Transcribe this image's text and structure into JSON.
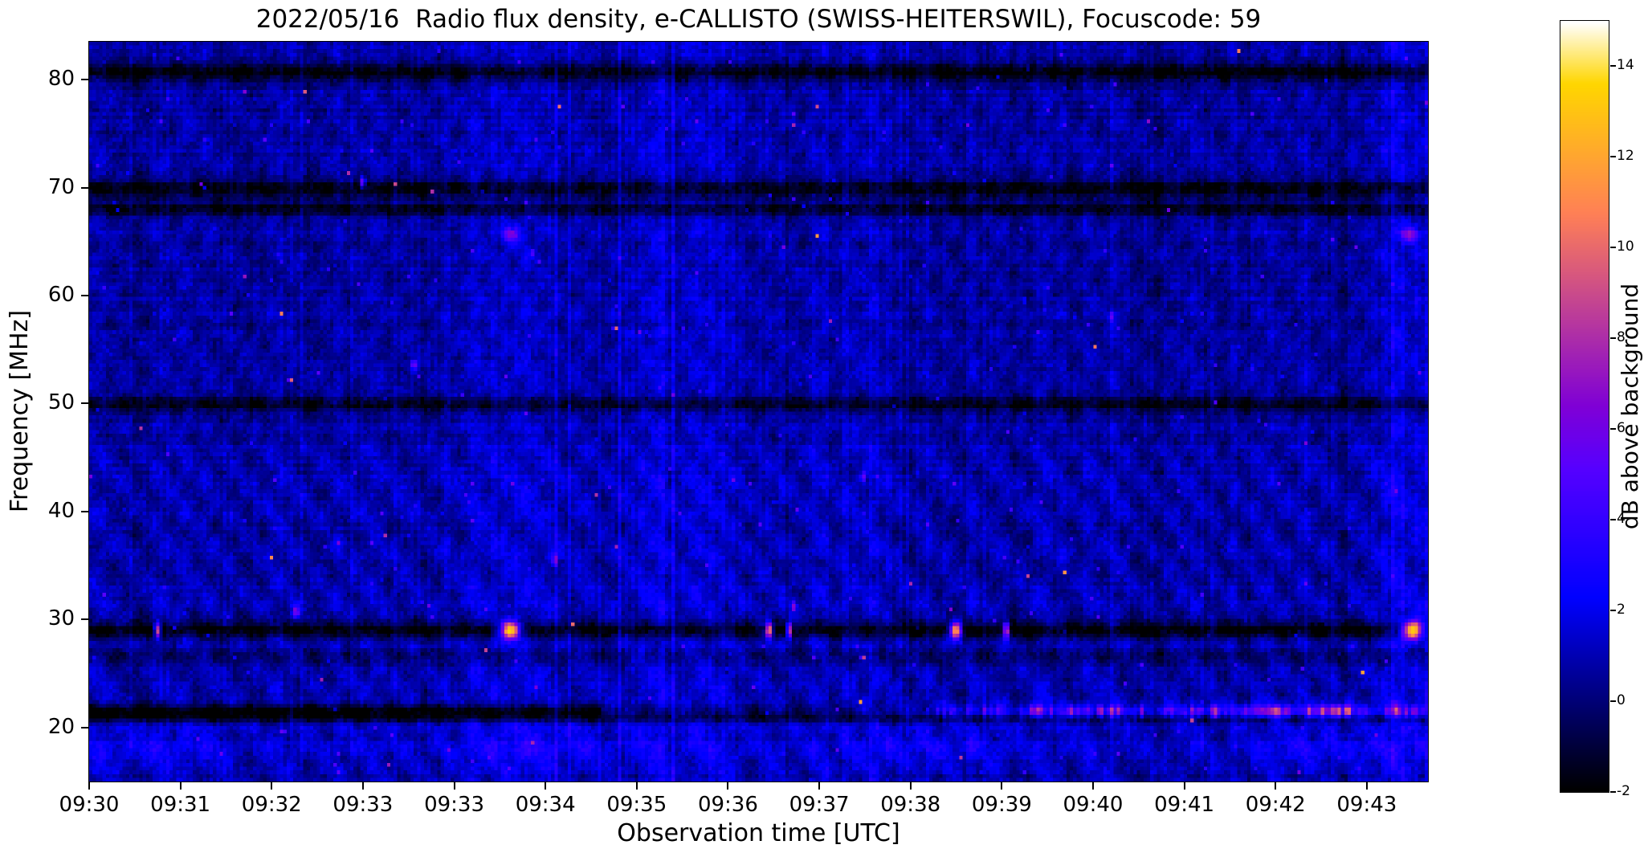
{
  "figure": {
    "background": "#ffffff",
    "text_color": "#000000"
  },
  "chart_data": {
    "type": "heatmap",
    "title": "2022/05/16  Radio flux density, e-CALLISTO (SWISS-HEITERSWIL), Focuscode: 59",
    "xlabel": "Observation time [UTC]",
    "ylabel": "Frequency [MHz]",
    "x_tick_labels": [
      "09:30",
      "09:31",
      "09:32",
      "09:33",
      "09:33",
      "09:34",
      "09:35",
      "09:36",
      "09:37",
      "09:38",
      "09:39",
      "09:40",
      "09:41",
      "09:42",
      "09:43"
    ],
    "x_range_units": [
      0,
      14.67
    ],
    "y_tick_values": [
      20,
      30,
      40,
      50,
      60,
      70,
      80
    ],
    "y_range_mhz": [
      15.0,
      83.5
    ],
    "grid": false,
    "colormap": "gnuplot2",
    "colorbar": {
      "label": "dB above background",
      "tick_values": [
        -2,
        0,
        2,
        4,
        6,
        8,
        10,
        12,
        14
      ],
      "vmin": -2,
      "vmax": 15
    },
    "noise_model": {
      "seed": 1337,
      "base_db": 0.85,
      "cell_noise_db": 1.1,
      "column_noise_db": 0.75,
      "row_noise_db": 0.3,
      "ripple_amp_low_db": 0.55,
      "ripple_amp_high_db": 0.33,
      "ripple_split_mhz": 46
    },
    "dark_bands": [
      {
        "center_mhz": 80.6,
        "width_mhz": 0.55,
        "depth_db": 2.6
      },
      {
        "center_mhz": 69.9,
        "width_mhz": 0.6,
        "depth_db": 2.6
      },
      {
        "center_mhz": 68.0,
        "width_mhz": 0.45,
        "depth_db": 2.3
      },
      {
        "center_mhz": 49.9,
        "width_mhz": 0.5,
        "depth_db": 2.3
      },
      {
        "center_mhz": 29.0,
        "width_mhz": 0.55,
        "depth_db": 2.7
      },
      {
        "center_mhz": 26.6,
        "width_mhz": 0.4,
        "depth_db": 1.1
      },
      {
        "center_mhz": 20.85,
        "width_mhz": 0.28,
        "depth_db": 1.6
      }
    ],
    "low_band_21mhz": {
      "center_mhz": 21.5,
      "width_mhz": 0.42,
      "black_until_unit": 5.6,
      "black_depth_db": 3.4,
      "mid_depth_db": 1.2,
      "streak_start_unit": 8.2,
      "streak_ramp_units": 2.2,
      "streak_base_db": 3.4,
      "streak_var_db": 3.2,
      "streak_hotspots": [
        {
          "t_unit": 12.9,
          "extra_db": 4.0
        },
        {
          "t_unit": 13.6,
          "extra_db": 3.5
        }
      ]
    },
    "bright_events": [
      {
        "t_unit": 0.75,
        "f_mhz": 29.0,
        "peak_db": 12.0,
        "sigma_t": 0.022,
        "sigma_f": 0.5,
        "glow": false
      },
      {
        "t_unit": 4.62,
        "f_mhz": 29.0,
        "peak_db": 15.5,
        "sigma_t": 0.07,
        "sigma_f": 0.55,
        "glow": true
      },
      {
        "t_unit": 4.62,
        "f_mhz": 65.6,
        "peak_db": 5.0,
        "sigma_t": 0.06,
        "sigma_f": 0.55,
        "glow": false
      },
      {
        "t_unit": 7.45,
        "f_mhz": 29.0,
        "peak_db": 13.5,
        "sigma_t": 0.026,
        "sigma_f": 0.5,
        "glow": false
      },
      {
        "t_unit": 7.67,
        "f_mhz": 29.0,
        "peak_db": 12.5,
        "sigma_t": 0.02,
        "sigma_f": 0.5,
        "glow": false
      },
      {
        "t_unit": 9.5,
        "f_mhz": 29.0,
        "peak_db": 14.5,
        "sigma_t": 0.045,
        "sigma_f": 0.55,
        "glow": false
      },
      {
        "t_unit": 10.05,
        "f_mhz": 29.0,
        "peak_db": 12.5,
        "sigma_t": 0.02,
        "sigma_f": 0.5,
        "glow": false
      },
      {
        "t_unit": 14.5,
        "f_mhz": 29.0,
        "peak_db": 15.5,
        "sigma_t": 0.08,
        "sigma_f": 0.6,
        "glow": true
      },
      {
        "t_unit": 14.47,
        "f_mhz": 65.6,
        "peak_db": 5.5,
        "sigma_t": 0.06,
        "sigma_f": 0.55,
        "glow": false
      }
    ],
    "specks": [
      {
        "t_unit": 3.0,
        "f_mhz": 70.5,
        "peak_db": 8.0
      },
      {
        "t_unit": 2.27,
        "f_mhz": 30.7,
        "peak_db": 7.0
      },
      {
        "t_unit": 7.72,
        "f_mhz": 31.2,
        "peak_db": 6.0
      },
      {
        "t_unit": 3.56,
        "f_mhz": 53.6,
        "peak_db": 6.0
      },
      {
        "t_unit": 8.48,
        "f_mhz": 43.2,
        "peak_db": 5.0
      },
      {
        "t_unit": 5.1,
        "f_mhz": 35.5,
        "peak_db": 5.5
      },
      {
        "t_unit": 11.2,
        "f_mhz": 58.0,
        "peak_db": 4.5
      }
    ],
    "bottom_patch": {
      "center_mhz": 18.0,
      "width_mhz": 1.4,
      "amp_db": 1.1
    }
  }
}
